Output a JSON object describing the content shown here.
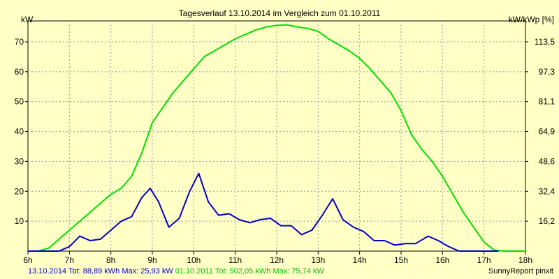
{
  "chart_data": {
    "type": "line",
    "title": "Tagesverlauf 13.10.2014 im Vergleich zum 01.10.2011",
    "ylabel_left": "kW",
    "ylabel_right": "kW/kWp [%]",
    "xlim": [
      6,
      18
    ],
    "ylim": [
      0,
      77
    ],
    "grid": true,
    "x_ticks": [
      {
        "value": 6,
        "label": "6h"
      },
      {
        "value": 7,
        "label": "7h"
      },
      {
        "value": 8,
        "label": "8h"
      },
      {
        "value": 9,
        "label": "9h"
      },
      {
        "value": 10,
        "label": "10h"
      },
      {
        "value": 11,
        "label": "11h"
      },
      {
        "value": 12,
        "label": "12h"
      },
      {
        "value": 13,
        "label": "13h"
      },
      {
        "value": 14,
        "label": "14h"
      },
      {
        "value": 15,
        "label": "15h"
      },
      {
        "value": 16,
        "label": "16h"
      },
      {
        "value": 17,
        "label": "17h"
      },
      {
        "value": 18,
        "label": "18h"
      }
    ],
    "y_ticks_left": [
      {
        "value": 10,
        "label": "10"
      },
      {
        "value": 20,
        "label": "20"
      },
      {
        "value": 30,
        "label": "30"
      },
      {
        "value": 40,
        "label": "40"
      },
      {
        "value": 50,
        "label": "50"
      },
      {
        "value": 60,
        "label": "60"
      },
      {
        "value": 70,
        "label": "70"
      }
    ],
    "y_ticks_right": [
      {
        "value": 10,
        "label": "16,2"
      },
      {
        "value": 20,
        "label": "32,4"
      },
      {
        "value": 30,
        "label": "48,6"
      },
      {
        "value": 40,
        "label": "64,9"
      },
      {
        "value": 50,
        "label": "81,1"
      },
      {
        "value": 60,
        "label": "97,3"
      },
      {
        "value": 70,
        "label": "113,5"
      }
    ],
    "series": [
      {
        "color": "#00e000",
        "x": [
          6.0,
          6.25,
          6.5,
          6.75,
          7.0,
          7.25,
          7.5,
          7.75,
          8.0,
          8.25,
          8.5,
          8.75,
          9.0,
          9.25,
          9.5,
          9.75,
          10.0,
          10.25,
          10.5,
          10.75,
          11.0,
          11.25,
          11.5,
          11.75,
          12.0,
          12.25,
          12.5,
          12.75,
          13.0,
          13.25,
          13.5,
          13.75,
          14.0,
          14.25,
          14.5,
          14.75,
          15.0,
          15.25,
          15.5,
          15.75,
          16.0,
          16.25,
          16.5,
          16.75,
          17.0,
          17.25,
          17.5,
          17.75,
          18.0
        ],
        "values": [
          0,
          0,
          1,
          4,
          7,
          10,
          13,
          16,
          19,
          21,
          25,
          33,
          43,
          48,
          53,
          57,
          61,
          65,
          67,
          69,
          71,
          72.5,
          74,
          75,
          75.5,
          75.7,
          75,
          74.5,
          73.5,
          71,
          69,
          67,
          64.5,
          61,
          57,
          53,
          47,
          39,
          34,
          30,
          25,
          19,
          13,
          8,
          3,
          0.3,
          0,
          0,
          0
        ]
      },
      {
        "color": "#0000c8",
        "x": [
          6.0,
          6.25,
          6.5,
          6.75,
          7.0,
          7.25,
          7.5,
          7.75,
          8.0,
          8.25,
          8.5,
          8.75,
          8.95,
          9.15,
          9.4,
          9.65,
          9.9,
          10.12,
          10.35,
          10.6,
          10.85,
          11.1,
          11.35,
          11.6,
          11.85,
          12.1,
          12.35,
          12.6,
          12.85,
          13.1,
          13.35,
          13.6,
          13.85,
          14.1,
          14.35,
          14.6,
          14.85,
          15.1,
          15.35,
          15.65,
          15.9,
          16.15,
          16.4,
          16.65,
          16.9,
          17.15,
          17.35
        ],
        "values": [
          0,
          0,
          0,
          0,
          1.5,
          5,
          3.5,
          4,
          7,
          10,
          11.5,
          18,
          21,
          16.5,
          8,
          11,
          20,
          26,
          16.5,
          12,
          12.5,
          10.5,
          9.5,
          10.5,
          11,
          8.5,
          8.5,
          5.5,
          7,
          12,
          17.5,
          10.5,
          8,
          6.5,
          3.5,
          3.5,
          2,
          2.5,
          2.5,
          5,
          3.5,
          1.5,
          0,
          0,
          0,
          0,
          0
        ]
      }
    ]
  },
  "footer": {
    "series1_label": "13.10.2014 Tot: 88,89 kWh Max: 25,93 kW",
    "series1_color": "#0000c8",
    "series2_label": "01.10.2011 Tot: 502,05 kWh Max: 75,74 kW",
    "series2_color": "#00c000",
    "brand": "SunnyReport pinxit"
  }
}
